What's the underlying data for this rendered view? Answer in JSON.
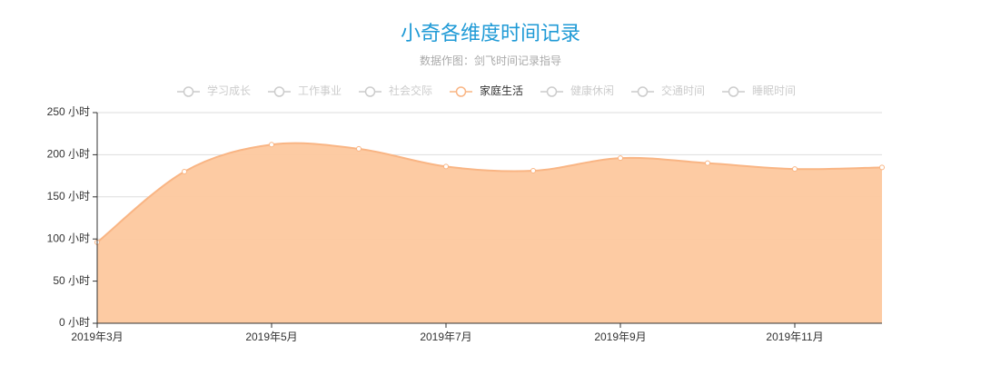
{
  "chart_data": {
    "type": "area",
    "title": "小奇各维度时间记录",
    "subtitle": "数据作图：剑飞时间记录指导",
    "categories": [
      "2019年3月",
      null,
      "2019年5月",
      null,
      "2019年7月",
      null,
      "2019年9月",
      null,
      "2019年11月",
      null
    ],
    "series": [
      {
        "name": "学习成长",
        "hidden": true
      },
      {
        "name": "工作事业",
        "hidden": true
      },
      {
        "name": "社会交际",
        "hidden": true
      },
      {
        "name": "家庭生活",
        "color": "#f9b584",
        "values": [
          96,
          180,
          212,
          207,
          186,
          181,
          196,
          190,
          183,
          185
        ]
      },
      {
        "name": "健康休闲",
        "hidden": true
      },
      {
        "name": "交通时间",
        "hidden": true
      },
      {
        "name": "睡眠时间",
        "hidden": true
      }
    ],
    "ylim": [
      0,
      250
    ],
    "yticks": [
      {
        "value": 0,
        "label": "0 小时"
      },
      {
        "value": 50,
        "label": "50 小时"
      },
      {
        "value": 100,
        "label": "100 小时"
      },
      {
        "value": 150,
        "label": "150 小时"
      },
      {
        "value": 200,
        "label": "200 小时"
      },
      {
        "value": 250,
        "label": "250 小时"
      }
    ],
    "grid": true,
    "legend": "top",
    "smooth": true
  }
}
